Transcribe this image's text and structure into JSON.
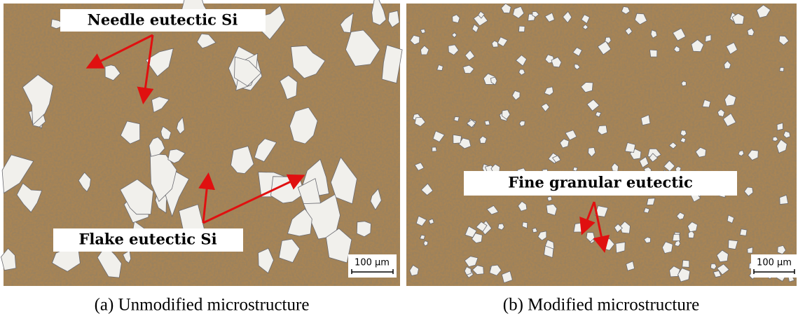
{
  "panels": [
    {
      "labels": [
        "Needle eutectic Si",
        "Flake eutectic Si"
      ],
      "scale_bar": "100 µm",
      "caption": "(a) Unmodified microstructure"
    },
    {
      "labels": [
        "Fine granular eutectic"
      ],
      "scale_bar": "100 µm",
      "caption": "(b) Modified microstructure"
    }
  ]
}
